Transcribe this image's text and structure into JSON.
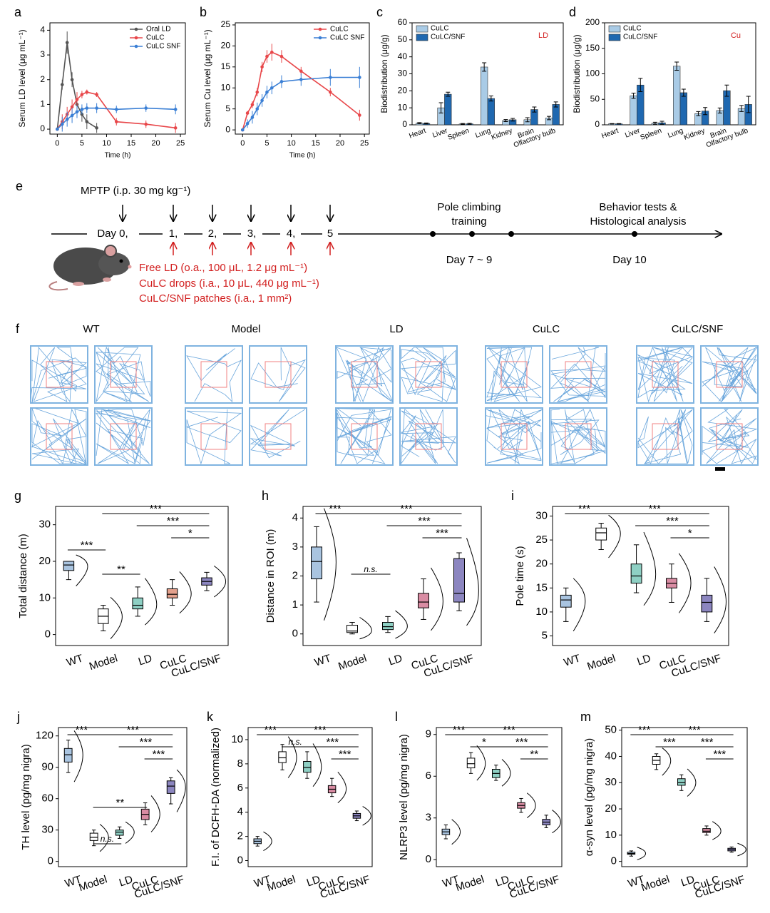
{
  "chart_data": [
    {
      "label": "a",
      "type": "line",
      "xlabel": "Time (h)",
      "ylabel": "Serum LD level (μg mL⁻¹)",
      "x": [
        0,
        1,
        2,
        3,
        4,
        5,
        6,
        8,
        12,
        18,
        24
      ],
      "series": [
        {
          "name": "Oral LD",
          "color": "#555555",
          "values": [
            0,
            1.8,
            3.5,
            2.0,
            1.0,
            0.6,
            0.3,
            0.05,
            null,
            null,
            null
          ],
          "errors": [
            0,
            0.2,
            0.45,
            0.3,
            0.4,
            0.3,
            0.3,
            0.2,
            null,
            null,
            null
          ]
        },
        {
          "name": "CuLC",
          "color": "#e8474a",
          "values": [
            0,
            0.3,
            0.6,
            0.9,
            1.2,
            1.4,
            1.5,
            1.4,
            0.3,
            0.2,
            0.05
          ],
          "errors": [
            0,
            0.3,
            0.3,
            0.3,
            0.3,
            0.15,
            0.1,
            0.1,
            0.15,
            0.15,
            0.2
          ]
        },
        {
          "name": "CuLC SNF",
          "color": "#3a7fd5",
          "values": [
            0,
            0.2,
            0.4,
            0.55,
            0.7,
            0.8,
            0.85,
            0.85,
            0.8,
            0.85,
            0.8
          ],
          "errors": [
            0,
            0.3,
            0.3,
            0.3,
            0.25,
            0.2,
            0.2,
            0.2,
            0.15,
            0.15,
            0.2
          ]
        }
      ],
      "xlim": [
        -1.5,
        26
      ],
      "xticks": [
        0,
        5,
        10,
        15,
        20,
        25
      ],
      "ylim": [
        -0.2,
        4.3
      ],
      "yticks": [
        0,
        1,
        2,
        3,
        4
      ],
      "legend": "upper right"
    },
    {
      "label": "b",
      "type": "line",
      "xlabel": "Time (h)",
      "ylabel": "Serum Cu level (μg mL⁻¹)",
      "x": [
        0,
        1,
        2,
        3,
        4,
        5,
        6,
        8,
        12,
        18,
        24
      ],
      "series": [
        {
          "name": "CuLC",
          "color": "#e8474a",
          "values": [
            0,
            4,
            6,
            9,
            15,
            17.5,
            18.5,
            17.5,
            14,
            9,
            3.5
          ],
          "errors": [
            0,
            0.5,
            0.8,
            1,
            1.2,
            1.5,
            2,
            1.5,
            1,
            1,
            1.3
          ]
        },
        {
          "name": "CuLC SNF",
          "color": "#3a7fd5",
          "values": [
            0,
            1.5,
            3,
            5,
            7,
            9,
            10,
            11.5,
            12,
            12.5,
            12.5
          ],
          "errors": [
            0,
            1,
            1.5,
            1.5,
            1.5,
            1.5,
            1.5,
            1.5,
            1.5,
            2,
            2.5
          ]
        }
      ],
      "xlim": [
        -1.5,
        26
      ],
      "xticks": [
        0,
        5,
        10,
        15,
        20,
        25
      ],
      "ylim": [
        -1,
        25.5
      ],
      "yticks": [
        0,
        5,
        10,
        15,
        20,
        25
      ],
      "legend": "upper right"
    },
    {
      "label": "c",
      "type": "bar",
      "ylabel": "Biodistribution (μg/g)",
      "annotation": "LD",
      "annotation_color": "#d21f1f",
      "categories": [
        "Heart",
        "Liver",
        "Spleen",
        "Lung",
        "Kidney",
        "Brain",
        "Olfactory bulb"
      ],
      "series": [
        {
          "name": "CuLC",
          "color": "#a9cbe6",
          "values": [
            1,
            10,
            0.5,
            34,
            2.5,
            3,
            4
          ],
          "errors": [
            0.3,
            3,
            0.3,
            2.5,
            0.6,
            1.2,
            1
          ]
        },
        {
          "name": "CuLC/SNF",
          "color": "#1f68b0",
          "values": [
            0.8,
            18,
            0.6,
            15.5,
            3,
            9,
            12
          ],
          "errors": [
            0.3,
            1.2,
            0.3,
            1.5,
            0.8,
            1.5,
            1.5
          ]
        }
      ],
      "ylim": [
        0,
        60
      ],
      "yticks": [
        0,
        10,
        20,
        30,
        40,
        50,
        60
      ],
      "legend": "upper left"
    },
    {
      "label": "d",
      "type": "bar",
      "ylabel": "Biodistribution (μg/g)",
      "annotation": "Cu",
      "annotation_color": "#d21f1f",
      "categories": [
        "Heart",
        "Liver",
        "Spleen",
        "Lung",
        "Kidney",
        "Brain",
        "Olfactory bulb"
      ],
      "series": [
        {
          "name": "CuLC",
          "color": "#a9cbe6",
          "values": [
            2,
            57,
            3,
            115,
            22,
            28,
            32
          ],
          "errors": [
            0.5,
            5,
            2,
            8,
            4,
            5,
            6
          ]
        },
        {
          "name": "CuLC/SNF",
          "color": "#1f68b0",
          "values": [
            2,
            78,
            4,
            63,
            27,
            67,
            40
          ],
          "errors": [
            0.5,
            13,
            3,
            7,
            7,
            11,
            16
          ]
        }
      ],
      "ylim": [
        0,
        200
      ],
      "yticks": [
        0,
        50,
        100,
        150,
        200
      ],
      "legend": "upper left"
    },
    {
      "label": "g",
      "type": "box",
      "ylabel": "Total distance (m)",
      "categories": [
        "WT",
        "Model",
        "LD",
        "CuLC",
        "CuLC/SNF"
      ],
      "colors": [
        "#a9c4e0",
        "#ffffff",
        "#8ed0c4",
        "#e3a08c",
        "#8c86c0"
      ],
      "boxes": [
        [
          15,
          17.5,
          19,
          20,
          20
        ],
        [
          1,
          3,
          5,
          7,
          8
        ],
        [
          5,
          7,
          8,
          10,
          13
        ],
        [
          8,
          10,
          11,
          12.5,
          15
        ],
        [
          12,
          13.5,
          14.5,
          15.5,
          17
        ]
      ],
      "annotations": [
        "***",
        "***",
        "***",
        "*",
        "**"
      ],
      "ylim": [
        -3,
        35
      ],
      "yticks": [
        0,
        10,
        20,
        30
      ]
    },
    {
      "label": "h",
      "type": "box",
      "ylabel": "Distance in ROI (m)",
      "categories": [
        "WT",
        "Model",
        "LD",
        "CuLC",
        "CuLC/SNF"
      ],
      "colors": [
        "#a9c4e0",
        "#ffffff",
        "#8ed0c4",
        "#d98ca3",
        "#8c86c0"
      ],
      "boxes": [
        [
          1.1,
          1.9,
          2.5,
          3,
          3.7
        ],
        [
          0,
          0.05,
          0.1,
          0.3,
          0.4
        ],
        [
          0.05,
          0.15,
          0.25,
          0.4,
          0.6
        ],
        [
          0.5,
          0.9,
          1.1,
          1.4,
          1.9
        ],
        [
          0.8,
          1.1,
          1.4,
          2.6,
          2.8
        ]
      ],
      "annotations": [
        "***",
        "***",
        "***",
        "***",
        "n.s."
      ],
      "ylim": [
        -0.4,
        4.4
      ],
      "yticks": [
        0,
        1,
        2,
        3,
        4
      ]
    },
    {
      "label": "i",
      "type": "box",
      "ylabel": "Pole time (s)",
      "categories": [
        "WT",
        "Model",
        "LD",
        "CuLC",
        "CuLC/SNF"
      ],
      "colors": [
        "#a9c4e0",
        "#ffffff",
        "#8ed0c4",
        "#d98ca3",
        "#8c86c0"
      ],
      "boxes": [
        [
          8,
          11,
          12.5,
          13.5,
          15
        ],
        [
          23,
          25,
          26.5,
          27.5,
          28.5
        ],
        [
          14,
          16,
          17.5,
          20,
          24
        ],
        [
          12,
          15,
          16,
          17,
          20
        ],
        [
          8,
          10,
          12,
          13.5,
          17
        ]
      ],
      "annotations": [
        "***",
        "***",
        "***",
        "*"
      ],
      "ylim": [
        3,
        32
      ],
      "yticks": [
        5,
        10,
        15,
        20,
        25,
        30
      ]
    },
    {
      "label": "j",
      "type": "box",
      "ylabel": "TH level (pg/mg nigra)",
      "categories": [
        "WT",
        "Model",
        "LD",
        "CuLC",
        "CuLC/SNF"
      ],
      "colors": [
        "#a9c4e0",
        "#ffffff",
        "#8ed0c4",
        "#d98ca3",
        "#8c86c0"
      ],
      "boxes": [
        [
          85,
          95,
          102,
          108,
          116
        ],
        [
          15,
          20,
          23,
          27,
          30
        ],
        [
          22,
          25,
          28,
          30,
          33
        ],
        [
          35,
          40,
          45,
          50,
          56
        ],
        [
          55,
          65,
          72,
          77,
          80
        ]
      ],
      "annotations": [
        "***",
        "***",
        "***",
        "***",
        "**",
        "n.s."
      ],
      "ylim": [
        -5,
        128
      ],
      "yticks": [
        0,
        30,
        60,
        90,
        120
      ]
    },
    {
      "label": "k",
      "type": "box",
      "ylabel": "F.I. of DCFH-DA (normalized)",
      "categories": [
        "WT",
        "Model",
        "LD",
        "CuLC",
        "CuLC/SNF"
      ],
      "colors": [
        "#a9c4e0",
        "#ffffff",
        "#8ed0c4",
        "#d98ca3",
        "#8c86c0"
      ],
      "boxes": [
        [
          1.2,
          1.4,
          1.6,
          1.8,
          2
        ],
        [
          7.5,
          8.1,
          8.5,
          9,
          9.6
        ],
        [
          6.8,
          7.3,
          7.7,
          8.2,
          9
        ],
        [
          5.3,
          5.6,
          5.9,
          6.2,
          6.8
        ],
        [
          3.3,
          3.5,
          3.7,
          3.9,
          4.1
        ]
      ],
      "annotations": [
        "***",
        "***",
        "***",
        "***",
        "n.s."
      ],
      "ylim": [
        -0.5,
        11
      ],
      "yticks": [
        0,
        2,
        4,
        6,
        8,
        10
      ]
    },
    {
      "label": "l",
      "type": "box",
      "ylabel": "NLRP3 level (pg/mg nigra)",
      "categories": [
        "WT",
        "Model",
        "LD",
        "CuLC",
        "CuLC/SNF"
      ],
      "colors": [
        "#a9c4e0",
        "#ffffff",
        "#8ed0c4",
        "#d98ca3",
        "#8c86c0"
      ],
      "boxes": [
        [
          1.5,
          1.8,
          2,
          2.2,
          2.5
        ],
        [
          6.2,
          6.6,
          6.9,
          7.3,
          7.7
        ],
        [
          5.7,
          5.9,
          6.2,
          6.5,
          6.8
        ],
        [
          3.4,
          3.7,
          3.9,
          4.1,
          4.4
        ],
        [
          2.3,
          2.5,
          2.7,
          2.9,
          3.2
        ]
      ],
      "annotations": [
        "***",
        "***",
        "***",
        "**",
        "*"
      ],
      "ylim": [
        -0.5,
        9.5
      ],
      "yticks": [
        0,
        3,
        6,
        9
      ]
    },
    {
      "label": "m",
      "type": "box",
      "ylabel": "α-syn level (pg/mg nigra)",
      "categories": [
        "WT",
        "Model",
        "LD",
        "CuLC",
        "CuLC/SNF"
      ],
      "colors": [
        "#a9c4e0",
        "#ffffff",
        "#8ed0c4",
        "#d98ca3",
        "#8c86c0"
      ],
      "boxes": [
        [
          2,
          2.7,
          3,
          3.5,
          4
        ],
        [
          35,
          37,
          38.5,
          40,
          41
        ],
        [
          27,
          29,
          30,
          31.5,
          33
        ],
        [
          10,
          11,
          11.5,
          12.5,
          13.5
        ],
        [
          3.5,
          4,
          4.5,
          5,
          5.5
        ]
      ],
      "annotations": [
        "***",
        "***",
        "***",
        "***",
        "***"
      ],
      "ylim": [
        -2,
        51
      ],
      "yticks": [
        0,
        10,
        20,
        30,
        40,
        50
      ]
    }
  ],
  "scheme": {
    "label": "e",
    "mptp": "MPTP (i.p. 30 mg kg⁻¹)",
    "days": [
      "Day 0,",
      "1,",
      "2,",
      "3,",
      "4,",
      "5"
    ],
    "treatments": [
      "Free LD (o.a., 100 μL, 1.2 μg mL⁻¹)",
      "CuLC drops (i.a., 10 μL, 440 μg mL⁻¹)",
      "CuLC/SNF patches (i.a., 1 mm²)"
    ],
    "training": [
      "Pole climbing",
      "training"
    ],
    "training_days": "Day 7 ~ 9",
    "tests": [
      "Behavior tests &",
      "Histological analysis"
    ],
    "test_day": "Day 10"
  },
  "tracking": {
    "label": "f",
    "groups": [
      "WT",
      "Model",
      "LD",
      "CuLC",
      "CuLC/SNF"
    ]
  }
}
